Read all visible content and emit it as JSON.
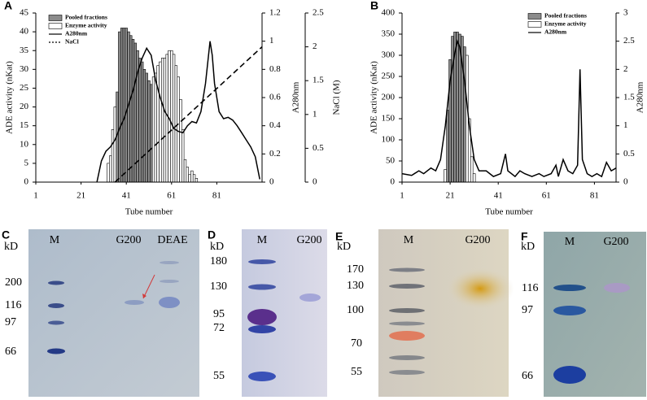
{
  "chart_data": [
    {
      "type": "combo",
      "panel_label": "A",
      "x_label": "Tube number",
      "y_label": "ADE activity (nKat)",
      "y2_label": "A280nm",
      "y3_label": "NaCl (M)",
      "legend": "top-left",
      "xlim": [
        1,
        101
      ],
      "xticks": [
        1,
        21,
        41,
        61,
        81
      ],
      "ylim": [
        0,
        45
      ],
      "yticks": [
        0,
        5,
        10,
        15,
        20,
        25,
        30,
        35,
        40,
        45
      ],
      "y2lim": [
        0,
        1.2
      ],
      "y2ticks": [
        0,
        0.2,
        0.4,
        0.6,
        0.8,
        1,
        1.2
      ],
      "y3lim": [
        0,
        2.5
      ],
      "y3ticks": [
        0,
        0.5,
        1,
        1.5,
        2,
        2.5
      ],
      "series": [
        {
          "name": "Pooled fractions",
          "type": "bar",
          "color": "#8c8c8c",
          "axis": "y",
          "x": [
            37,
            38,
            39,
            40,
            41,
            42,
            43,
            44,
            45,
            46,
            47,
            48,
            49,
            50,
            51,
            52
          ],
          "values": [
            24,
            40,
            41,
            41,
            41,
            40,
            39,
            38,
            37,
            35,
            33,
            32,
            30,
            29,
            27,
            26
          ]
        },
        {
          "name": "Enzyme activity",
          "type": "bar",
          "color": "#ffffff",
          "axis": "y",
          "x": [
            33,
            34,
            35,
            36,
            53,
            54,
            55,
            56,
            57,
            58,
            59,
            60,
            61,
            62,
            63,
            64,
            65,
            66,
            67,
            68,
            69,
            70,
            71,
            72
          ],
          "values": [
            5,
            7,
            14,
            20,
            28,
            29,
            31,
            32,
            33,
            33,
            34,
            35,
            35,
            34,
            31,
            28,
            22,
            14,
            6,
            4,
            2,
            3,
            2,
            1
          ]
        },
        {
          "name": "A280nm",
          "type": "line",
          "color": "#000000",
          "axis": "y2",
          "x": [
            28,
            30,
            32,
            34,
            36,
            38,
            40,
            42,
            44,
            46,
            48,
            50,
            52,
            54,
            56,
            58,
            60,
            62,
            64,
            66,
            68,
            70,
            72,
            74,
            76,
            77,
            78,
            79,
            80,
            82,
            84,
            86,
            88,
            90,
            92,
            94,
            96,
            98,
            100
          ],
          "values": [
            0,
            0.15,
            0.22,
            0.25,
            0.3,
            0.38,
            0.45,
            0.55,
            0.65,
            0.78,
            0.88,
            0.95,
            0.9,
            0.72,
            0.6,
            0.5,
            0.45,
            0.38,
            0.36,
            0.35,
            0.4,
            0.43,
            0.42,
            0.5,
            0.7,
            0.85,
            1.0,
            0.9,
            0.7,
            0.5,
            0.45,
            0.46,
            0.44,
            0.4,
            0.35,
            0.3,
            0.25,
            0.18,
            0.02
          ]
        },
        {
          "name": "NaCl",
          "type": "line",
          "dash": true,
          "color": "#000000",
          "axis": "y3",
          "x": [
            36,
            101
          ],
          "values": [
            0,
            2.0
          ]
        }
      ]
    },
    {
      "type": "combo",
      "panel_label": "B",
      "x_label": "Tube number",
      "y_label": "ADE activity (nKat)",
      "y2_label": "A280nm",
      "legend": "top-right",
      "xlim": [
        1,
        90
      ],
      "xticks": [
        1,
        21,
        41,
        61,
        81
      ],
      "ylim": [
        0,
        400
      ],
      "yticks": [
        0,
        50,
        100,
        150,
        200,
        250,
        300,
        350,
        400
      ],
      "y2lim": [
        0,
        3
      ],
      "y2ticks": [
        0,
        0.5,
        1,
        1.5,
        2,
        2.5,
        3
      ],
      "series": [
        {
          "name": "Pooled fractions",
          "type": "bar",
          "color": "#8c8c8c",
          "axis": "y",
          "x": [
            20,
            21,
            22,
            23,
            24,
            25,
            26,
            27
          ],
          "values": [
            170,
            290,
            345,
            355,
            355,
            350,
            345,
            320
          ]
        },
        {
          "name": "Enzyme activity",
          "type": "bar",
          "color": "#ffffff",
          "axis": "y",
          "x": [
            19,
            28,
            29,
            30,
            31
          ],
          "values": [
            30,
            300,
            150,
            60,
            20
          ]
        },
        {
          "name": "A280nm",
          "type": "line",
          "color": "#000000",
          "axis": "y2",
          "x": [
            1,
            5,
            8,
            10,
            13,
            15,
            17,
            19,
            21,
            23,
            24,
            25,
            27,
            29,
            31,
            33,
            36,
            39,
            42,
            44,
            45,
            48,
            50,
            52,
            55,
            58,
            60,
            63,
            65,
            66,
            68,
            70,
            72,
            74,
            75,
            76,
            78,
            80,
            82,
            84,
            86,
            88,
            90
          ],
          "values": [
            0.15,
            0.12,
            0.2,
            0.15,
            0.25,
            0.2,
            0.4,
            1.0,
            1.8,
            2.3,
            2.5,
            2.4,
            1.8,
            1.0,
            0.4,
            0.2,
            0.2,
            0.1,
            0.15,
            0.5,
            0.2,
            0.1,
            0.2,
            0.15,
            0.1,
            0.15,
            0.1,
            0.15,
            0.3,
            0.1,
            0.4,
            0.2,
            0.15,
            0.3,
            2.0,
            0.4,
            0.15,
            0.1,
            0.15,
            0.1,
            0.35,
            0.2,
            0.25
          ]
        }
      ]
    }
  ],
  "gels": [
    {
      "panel_label": "C",
      "unit": "kD",
      "lanes": [
        "M",
        "G200",
        "DEAE"
      ],
      "markers": [
        "200",
        "116",
        "97",
        "66"
      ]
    },
    {
      "panel_label": "D",
      "unit": "kD",
      "lanes": [
        "M",
        "G200"
      ],
      "markers": [
        "180",
        "130",
        "95",
        "72",
        "55"
      ]
    },
    {
      "panel_label": "E",
      "unit": "kD",
      "lanes": [
        "M",
        "G200"
      ],
      "markers": [
        "170",
        "130",
        "100",
        "70",
        "55"
      ]
    },
    {
      "panel_label": "F",
      "unit": "kD",
      "lanes": [
        "M",
        "G200"
      ],
      "markers": [
        "116",
        "97",
        "66"
      ]
    }
  ]
}
